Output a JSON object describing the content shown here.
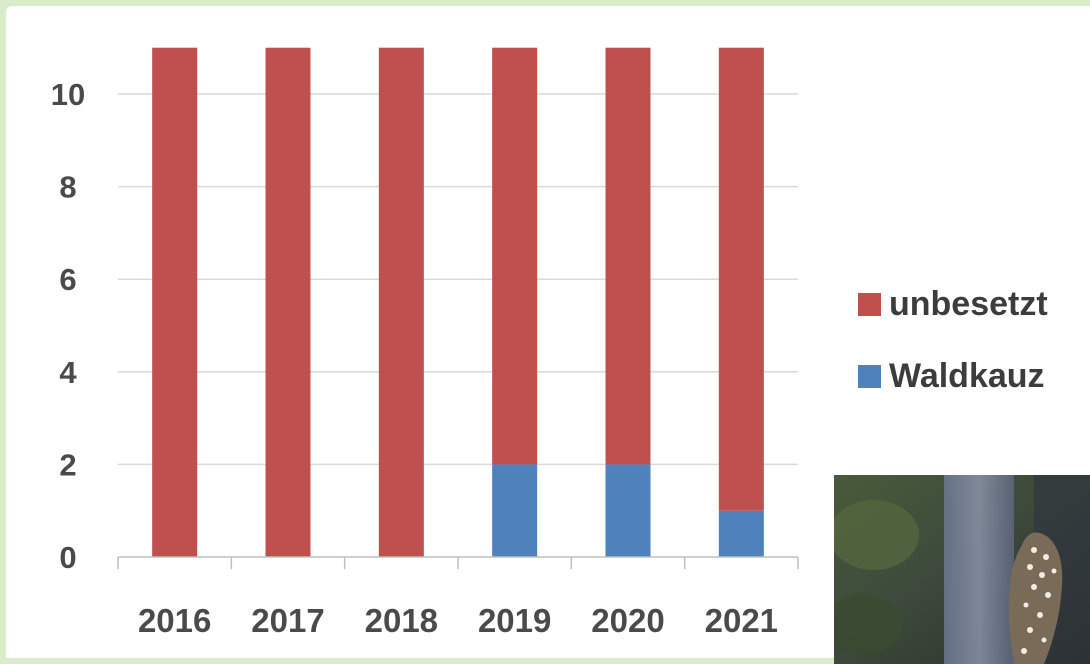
{
  "chart_data": {
    "type": "bar",
    "stacked": true,
    "categories": [
      "2016",
      "2017",
      "2018",
      "2019",
      "2020",
      "2021"
    ],
    "series": [
      {
        "name": "Waldkauz",
        "color": "#4f81bd",
        "values": [
          0,
          0,
          0,
          2,
          2,
          1
        ]
      },
      {
        "name": "unbesetzt",
        "color": "#c0504d",
        "values": [
          11,
          11,
          11,
          9,
          9,
          10
        ]
      }
    ],
    "y_ticks": [
      0,
      2,
      4,
      6,
      8,
      10
    ],
    "ylim": [
      0,
      11
    ],
    "grid": true,
    "legend_position": "right",
    "legend_order": [
      "unbesetzt",
      "Waldkauz"
    ]
  },
  "photo": {
    "icon": "owl-photo-icon"
  }
}
